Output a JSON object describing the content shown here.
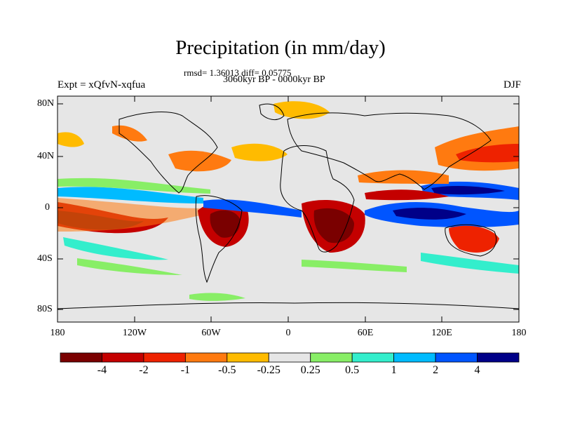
{
  "title": "Precipitation (in mm/day)",
  "stats": "rmsd= 1.36013 diff= 0.05775",
  "period": "3060kyr BP - 0000kyr BP",
  "experiment": "Expt = xQfvN-xqfua",
  "season": "DJF",
  "lat_labels": [
    "80N",
    "40N",
    "0",
    "40S",
    "80S"
  ],
  "lon_labels": [
    "180",
    "120W",
    "60W",
    "0",
    "60E",
    "120E",
    "180"
  ],
  "colorbar": {
    "colors": [
      "#7a0000",
      "#c40000",
      "#ee2200",
      "#ff7a10",
      "#ffbb00",
      "#e6e6e6",
      "#88ee66",
      "#33eecc",
      "#00bbff",
      "#0055ff",
      "#000088"
    ],
    "labels": [
      "-4",
      "-2",
      "-1",
      "-0.5",
      "-0.25",
      "0.25",
      "0.5",
      "1",
      "2",
      "4"
    ]
  },
  "map": {
    "background": "#e6e6e6"
  }
}
